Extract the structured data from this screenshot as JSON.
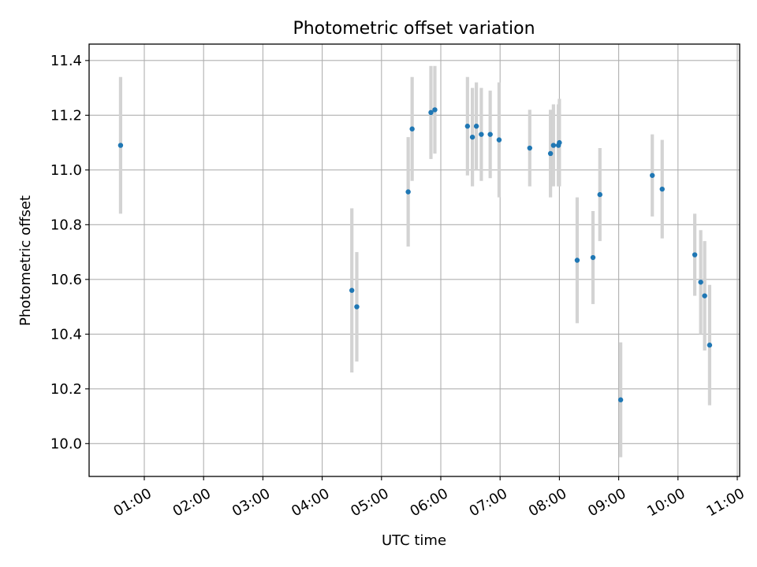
{
  "chart_data": {
    "type": "scatter",
    "title": "Photometric offset variation",
    "xlabel": "UTC time",
    "ylabel": "Photometric offset",
    "x_unit": "UTC time (HH:MM)",
    "xlim": [
      "00:05",
      "11:00"
    ],
    "ylim": [
      9.88,
      11.46
    ],
    "x_ticks": [
      "01:00",
      "02:00",
      "03:00",
      "04:00",
      "05:00",
      "06:00",
      "07:00",
      "08:00",
      "09:00",
      "10:00",
      "11:00"
    ],
    "y_ticks": [
      10.0,
      10.2,
      10.4,
      10.6,
      10.8,
      11.0,
      11.2,
      11.4
    ],
    "y_tick_labels": [
      "10.0",
      "10.2",
      "10.4",
      "10.6",
      "10.8",
      "11.0",
      "11.2",
      "11.4"
    ],
    "grid": true,
    "point_color": "#1f77b4",
    "errorbar_color": "#d3d3d3",
    "points": [
      {
        "x": "00:36",
        "y": 11.09,
        "err": 0.25
      },
      {
        "x": "04:30",
        "y": 10.56,
        "err": 0.3
      },
      {
        "x": "04:35",
        "y": 10.5,
        "err": 0.2
      },
      {
        "x": "05:27",
        "y": 10.92,
        "err": 0.2
      },
      {
        "x": "05:31",
        "y": 11.15,
        "err": 0.19
      },
      {
        "x": "05:50",
        "y": 11.21,
        "err": 0.17
      },
      {
        "x": "05:54",
        "y": 11.22,
        "err": 0.16
      },
      {
        "x": "06:27",
        "y": 11.16,
        "err": 0.18
      },
      {
        "x": "06:32",
        "y": 11.12,
        "err": 0.18
      },
      {
        "x": "06:36",
        "y": 11.16,
        "err": 0.16
      },
      {
        "x": "06:41",
        "y": 11.13,
        "err": 0.17
      },
      {
        "x": "06:50",
        "y": 11.13,
        "err": 0.16
      },
      {
        "x": "06:59",
        "y": 11.11,
        "err": 0.21
      },
      {
        "x": "07:30",
        "y": 11.08,
        "err": 0.14
      },
      {
        "x": "07:51",
        "y": 11.06,
        "err": 0.16
      },
      {
        "x": "07:54",
        "y": 11.09,
        "err": 0.15
      },
      {
        "x": "07:59",
        "y": 11.09,
        "err": 0.15
      },
      {
        "x": "08:00",
        "y": 11.1,
        "err": 0.16
      },
      {
        "x": "08:18",
        "y": 10.67,
        "err": 0.23
      },
      {
        "x": "08:34",
        "y": 10.68,
        "err": 0.17
      },
      {
        "x": "08:41",
        "y": 10.91,
        "err": 0.17
      },
      {
        "x": "09:02",
        "y": 10.16,
        "err": 0.21
      },
      {
        "x": "09:34",
        "y": 10.98,
        "err": 0.15
      },
      {
        "x": "09:44",
        "y": 10.93,
        "err": 0.18
      },
      {
        "x": "10:17",
        "y": 10.69,
        "err": 0.15
      },
      {
        "x": "10:23",
        "y": 10.59,
        "err": 0.19
      },
      {
        "x": "10:27",
        "y": 10.54,
        "err": 0.2
      },
      {
        "x": "10:32",
        "y": 10.36,
        "err": 0.22
      }
    ]
  }
}
